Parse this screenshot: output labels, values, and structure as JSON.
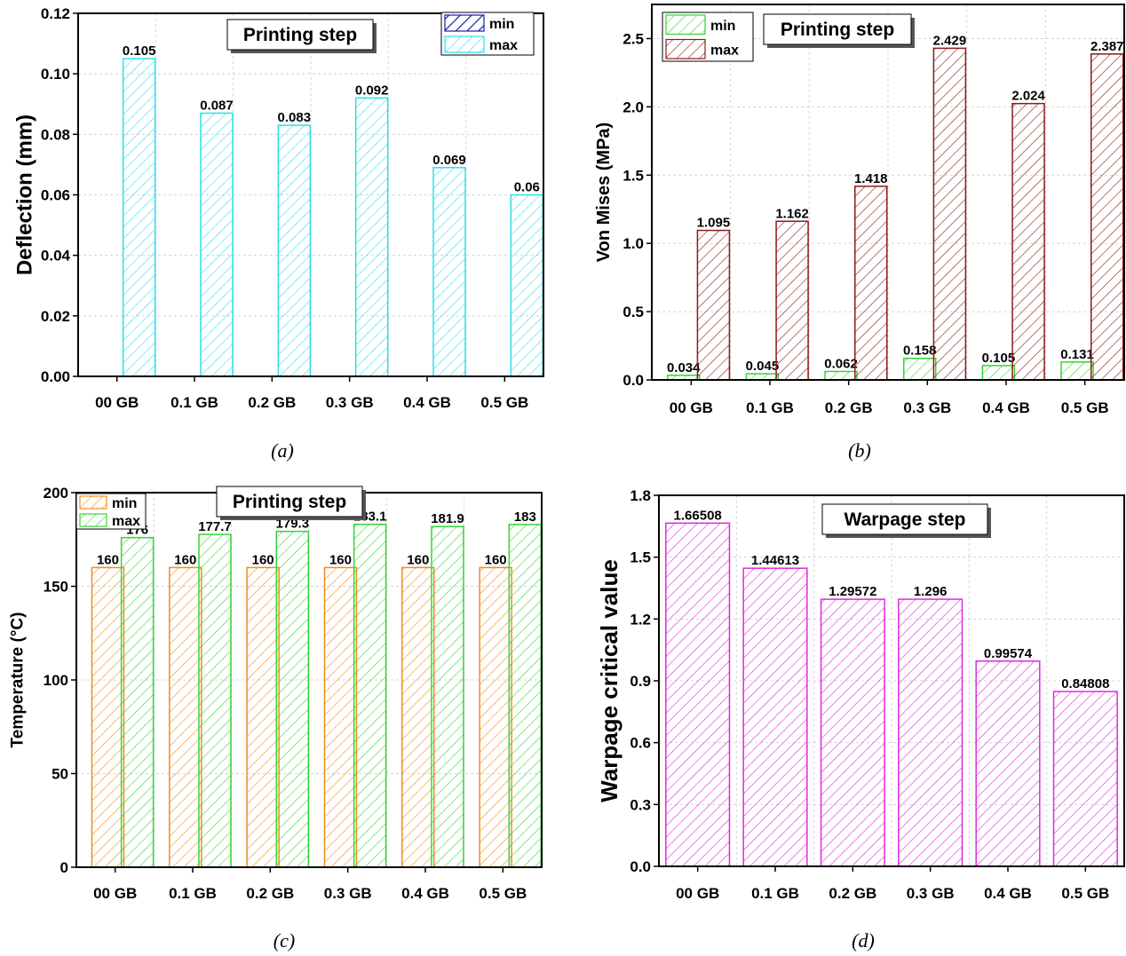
{
  "chart_data": [
    {
      "type": "bar",
      "caption": "(a)",
      "title": "Printing step",
      "ylabel": "Deflection (mm)",
      "categories": [
        "00 GB",
        "0.1 GB",
        "0.2 GB",
        "0.3 GB",
        "0.4 GB",
        "0.5 GB"
      ],
      "series": [
        {
          "name": "min",
          "values": [
            0,
            0,
            0,
            0,
            0,
            0
          ],
          "labels": [
            "",
            "",
            "",
            "",
            "",
            ""
          ],
          "color": "#1a1aa8"
        },
        {
          "name": "max",
          "values": [
            0.105,
            0.087,
            0.083,
            0.092,
            0.069,
            0.06
          ],
          "labels": [
            "0.105",
            "0.087",
            "0.083",
            "0.092",
            "0.069",
            "0.06"
          ],
          "color": "#2ee0e8"
        }
      ],
      "yticks": [
        "0.00",
        "0.02",
        "0.04",
        "0.06",
        "0.08",
        "0.10",
        "0.12"
      ],
      "ylim": [
        0,
        0.12
      ],
      "grid": true,
      "legend": "top-right"
    },
    {
      "type": "bar",
      "caption": "(b)",
      "title": "Printing step",
      "ylabel": "Von Mises (MPa)",
      "categories": [
        "00 GB",
        "0.1 GB",
        "0.2 GB",
        "0.3 GB",
        "0.4 GB",
        "0.5 GB"
      ],
      "series": [
        {
          "name": "min",
          "values": [
            0.034,
            0.045,
            0.062,
            0.158,
            0.105,
            0.131
          ],
          "labels": [
            "0.034",
            "0.045",
            "0.062",
            "0.158",
            "0.105",
            "0.131"
          ],
          "color": "#33d633"
        },
        {
          "name": "max",
          "values": [
            1.095,
            1.162,
            1.418,
            2.429,
            2.024,
            2.387
          ],
          "labels": [
            "1.095",
            "1.162",
            "1.418",
            "2.429",
            "2.024",
            "2.387"
          ],
          "color": "#8b1a1a"
        }
      ],
      "yticks": [
        "0.0",
        "0.5",
        "1.0",
        "1.5",
        "2.0",
        "2.5"
      ],
      "ylim": [
        0,
        2.75
      ],
      "grid": true,
      "legend": "top-left"
    },
    {
      "type": "bar",
      "caption": "(c)",
      "title": "Printing step",
      "ylabel": "Temperature (°C)",
      "categories": [
        "00 GB",
        "0.1 GB",
        "0.2 GB",
        "0.3 GB",
        "0.4 GB",
        "0.5 GB"
      ],
      "series": [
        {
          "name": "min",
          "values": [
            160,
            160,
            160,
            160,
            160,
            160
          ],
          "labels": [
            "160",
            "160",
            "160",
            "160",
            "160",
            "160"
          ],
          "color": "#f28c1c"
        },
        {
          "name": "max",
          "values": [
            176,
            177.7,
            179.3,
            183.1,
            181.9,
            183
          ],
          "labels": [
            "176",
            "177.7",
            "179.3",
            "183.1",
            "181.9",
            "183"
          ],
          "color": "#33d633"
        }
      ],
      "yticks": [
        "0",
        "50",
        "100",
        "150",
        "200"
      ],
      "ylim": [
        0,
        200
      ],
      "grid": true,
      "legend": "top-left"
    },
    {
      "type": "bar",
      "caption": "(d)",
      "title": "Warpage step",
      "ylabel": "Warpage critical value",
      "categories": [
        "00 GB",
        "0.1 GB",
        "0.2 GB",
        "0.3 GB",
        "0.4 GB",
        "0.5 GB"
      ],
      "series": [
        {
          "name": "",
          "values": [
            1.66508,
            1.44613,
            1.29572,
            1.296,
            0.99574,
            0.84808
          ],
          "labels": [
            "1.66508",
            "1.44613",
            "1.29572",
            "1.296",
            "0.99574",
            "0.84808"
          ],
          "color": "#e028e0"
        }
      ],
      "yticks": [
        "0.0",
        "0.3",
        "0.6",
        "0.9",
        "1.2",
        "1.5",
        "1.8"
      ],
      "ylim": [
        0,
        1.8
      ],
      "grid": true,
      "legend": "none"
    }
  ]
}
